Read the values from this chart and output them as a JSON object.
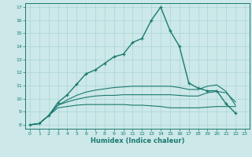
{
  "xlabel": "Humidex (Indice chaleur)",
  "bg_color": "#cce8e8",
  "grid_color": "#aad4d4",
  "line_color": "#1a7a6e",
  "x_values": [
    0,
    1,
    2,
    3,
    4,
    5,
    6,
    7,
    8,
    9,
    10,
    11,
    12,
    13,
    14,
    15,
    16,
    17,
    18,
    19,
    20,
    21,
    22,
    23
  ],
  "series_main": [
    8.0,
    8.1,
    8.7,
    9.7,
    10.3,
    11.1,
    11.9,
    12.2,
    12.7,
    13.2,
    13.4,
    14.3,
    14.6,
    16.0,
    17.0,
    15.2,
    14.0,
    11.2,
    10.8,
    10.6,
    10.6,
    9.6,
    8.9,
    null
  ],
  "series_low": [
    8.0,
    8.1,
    8.7,
    9.3,
    9.4,
    9.5,
    9.55,
    9.55,
    9.55,
    9.55,
    9.55,
    9.5,
    9.5,
    9.45,
    9.4,
    9.3,
    9.3,
    9.3,
    9.3,
    9.35,
    9.4,
    9.4,
    9.4,
    null
  ],
  "series_mid": [
    8.0,
    8.1,
    8.7,
    9.5,
    9.75,
    9.95,
    10.1,
    10.2,
    10.25,
    10.25,
    10.3,
    10.3,
    10.3,
    10.3,
    10.3,
    10.3,
    10.25,
    10.2,
    10.2,
    10.45,
    10.55,
    10.45,
    9.75,
    null
  ],
  "series_high": [
    8.0,
    8.1,
    8.7,
    9.5,
    9.9,
    10.25,
    10.5,
    10.65,
    10.75,
    10.85,
    10.9,
    10.95,
    10.95,
    10.95,
    10.95,
    10.95,
    10.85,
    10.7,
    10.7,
    10.95,
    11.05,
    10.55,
    9.5,
    null
  ],
  "ylim": [
    8,
    17
  ],
  "xlim": [
    0,
    23
  ],
  "yticks": [
    8,
    9,
    10,
    11,
    12,
    13,
    14,
    15,
    16,
    17
  ],
  "xticks": [
    0,
    1,
    2,
    3,
    4,
    5,
    6,
    7,
    8,
    9,
    10,
    11,
    12,
    13,
    14,
    15,
    16,
    17,
    18,
    19,
    20,
    21,
    22,
    23
  ]
}
